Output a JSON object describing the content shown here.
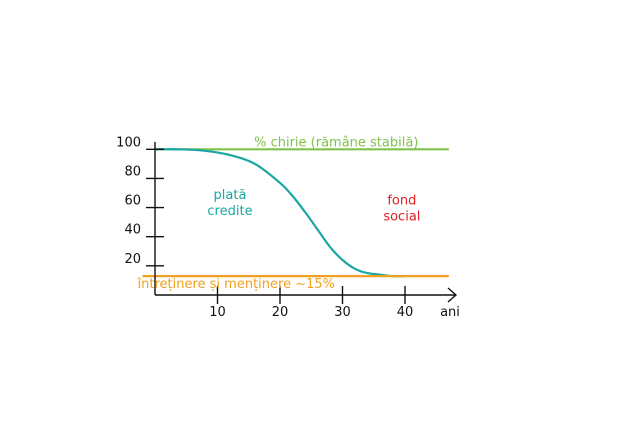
{
  "chart_data": {
    "type": "line",
    "x_unit_label": "ani",
    "xlim": [
      0,
      48
    ],
    "ylim": [
      0,
      105
    ],
    "x_ticks": [
      10,
      20,
      30,
      40
    ],
    "y_ticks": [
      20,
      40,
      60,
      80,
      100
    ],
    "grid": false,
    "legend": "none",
    "series": [
      {
        "key": "rent",
        "color": "#7dc34a",
        "x": [
          0,
          47
        ],
        "y": [
          100,
          100
        ]
      },
      {
        "key": "credit",
        "color": "#1aa6a3",
        "x": [
          0,
          4,
          8,
          12,
          16,
          20,
          22,
          24,
          26,
          28,
          30,
          32,
          34,
          36,
          38,
          40
        ],
        "y": [
          100,
          100,
          99,
          96,
          90,
          77,
          68,
          57,
          45,
          33,
          24,
          18,
          15,
          14,
          13,
          13
        ]
      },
      {
        "key": "maintenance",
        "color": "#f0a020",
        "x": [
          -2,
          47
        ],
        "y": [
          13,
          13
        ]
      }
    ],
    "annotations": [
      {
        "key": "rent",
        "lines": [
          "% chirie (rămâne stabilă)"
        ],
        "color": "#7dc34a"
      },
      {
        "key": "credit",
        "lines": [
          "plată",
          "credite"
        ],
        "color": "#1aa6a3"
      },
      {
        "key": "fund",
        "lines": [
          "fond",
          "social"
        ],
        "color": "#e02020"
      },
      {
        "key": "maintenance",
        "lines": [
          "întreținere și menținere ~15%"
        ],
        "color": "#f0a020"
      }
    ],
    "axis_color": "#111111"
  }
}
